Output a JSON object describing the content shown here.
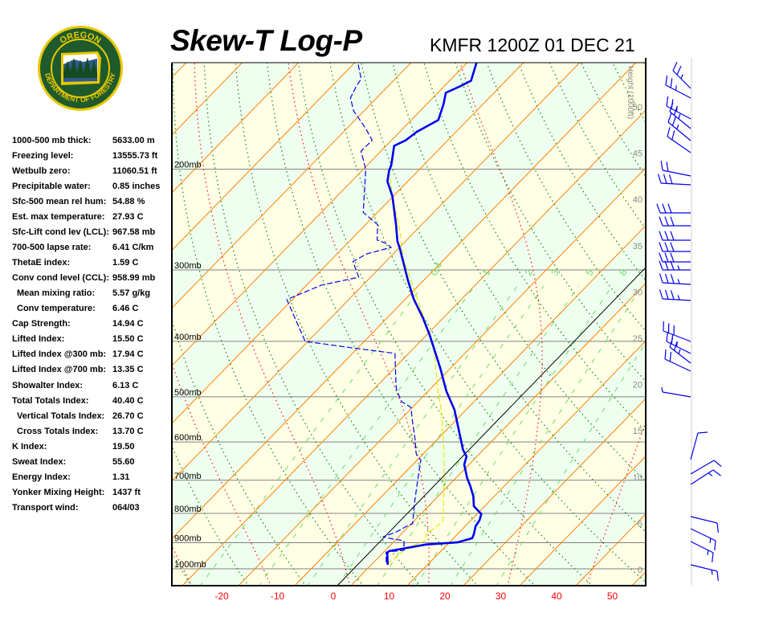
{
  "header": {
    "title": "Skew-T Log-P",
    "station_time": "KMFR 1200Z 01 DEC 21"
  },
  "logo": {
    "top_text": "OREGON",
    "bottom_text": "DEPARTMENT OF FORESTRY",
    "colors": {
      "ring": "#e8c800",
      "field": "#1f5a2c"
    }
  },
  "stats": [
    {
      "label": "1000-500 mb thick:",
      "value": "5633.00 m"
    },
    {
      "label": "Freezing level:",
      "value": "13555.73 ft"
    },
    {
      "label": "Wetbulb zero:",
      "value": "11060.51 ft"
    },
    {
      "label": "Precipitable water:",
      "value": "0.85 inches"
    },
    {
      "label": "Sfc-500 mean rel hum:",
      "value": "54.88 %"
    },
    {
      "label": "Est. max temperature:",
      "value": "27.93 C"
    },
    {
      "label": "Sfc-Lift cond lev (LCL):",
      "value": "967.58 mb"
    },
    {
      "label": "700-500 lapse rate:",
      "value": "6.41 C/km"
    },
    {
      "label": "ThetaE index:",
      "value": "1.59 C"
    },
    {
      "label": "Conv cond level (CCL):",
      "value": "958.99 mb"
    },
    {
      "label": "Mean mixing ratio:",
      "value": "5.57 g/kg",
      "indent": true
    },
    {
      "label": "Conv temperature:",
      "value": "6.46 C",
      "indent": true
    },
    {
      "label": "Cap Strength:",
      "value": "14.94 C"
    },
    {
      "label": "Lifted Index:",
      "value": "15.50 C"
    },
    {
      "label": "Lifted Index @300 mb:",
      "value": "17.94 C"
    },
    {
      "label": "Lifted Index @700 mb:",
      "value": "13.35 C"
    },
    {
      "label": "Showalter Index:",
      "value": "6.13 C"
    },
    {
      "label": "Total Totals Index:",
      "value": "40.40 C"
    },
    {
      "label": "Vertical Totals Index:",
      "value": "26.70 C",
      "indent": true
    },
    {
      "label": "Cross Totals Index:",
      "value": "13.70 C",
      "indent": true
    },
    {
      "label": "K Index:",
      "value": "19.50"
    },
    {
      "label": "Sweat Index:",
      "value": "55.60"
    },
    {
      "label": "Energy Index:",
      "value": "1.31"
    },
    {
      "label": "Yonker Mixing Height:",
      "value": "1437 ft"
    },
    {
      "label": "Transport wind:",
      "value": "064/03"
    }
  ],
  "chart_data": {
    "type": "line",
    "title": "Skew-T Log-P",
    "x_ticks": [
      "-20",
      "-10",
      "0",
      "10",
      "20",
      "30",
      "40",
      "50"
    ],
    "x_tick_values": [
      -20,
      -10,
      0,
      10,
      20,
      30,
      40,
      50
    ],
    "pressure_levels": [
      200,
      300,
      400,
      500,
      600,
      700,
      800,
      900,
      1000
    ],
    "pressure_labels": [
      "200mb",
      "300mb",
      "400mb",
      "500mb",
      "600mb",
      "700mb",
      "800mb",
      "900mb",
      "1000mb"
    ],
    "y_scale": "log-pressure",
    "height_axis_label": "Height (1000ft)",
    "height_ticks": [
      "0",
      "5",
      "10",
      "15",
      "20",
      "25",
      "30",
      "35",
      "40",
      "45",
      "50"
    ],
    "mixing_ratio_labels": [
      "0.4",
      "1",
      "2",
      "3",
      "5",
      "8"
    ],
    "colors": {
      "temperature": "#0000ee",
      "dewpoint": "#0000ee",
      "parcel": "#e8e800",
      "isotherm": "#ff8000",
      "dry_adiabat": "#008000",
      "moist_adiabat": "#ff0000",
      "mixing_ratio": "#66dd66",
      "band_a": "#efffef",
      "band_b": "#ffffe6",
      "x_tick": "#ff0000",
      "height_tick": "#888888"
    },
    "series": [
      {
        "key": "temperature",
        "points_p_T": [
          [
            984,
            6.1
          ],
          [
            937,
            3.9
          ],
          [
            931,
            4.0
          ],
          [
            907,
            9.4
          ],
          [
            899,
            14.7
          ],
          [
            884,
            16.6
          ],
          [
            870,
            16.2
          ],
          [
            842,
            15.1
          ],
          [
            823,
            14.8
          ],
          [
            802,
            14.0
          ],
          [
            777,
            11.3
          ],
          [
            747,
            9.5
          ],
          [
            717,
            7.2
          ],
          [
            694,
            5.2
          ],
          [
            657,
            2.3
          ],
          [
            636,
            1.3
          ],
          [
            619,
            -0.5
          ],
          [
            527,
            -9.0
          ],
          [
            489,
            -13.7
          ],
          [
            445,
            -18.9
          ],
          [
            390,
            -26.5
          ],
          [
            364,
            -30.7
          ],
          [
            337,
            -35.7
          ],
          [
            312,
            -40.1
          ],
          [
            276,
            -46.8
          ],
          [
            267,
            -48.7
          ],
          [
            250,
            -51.8
          ],
          [
            223,
            -57.4
          ],
          [
            210,
            -60.9
          ],
          [
            201,
            -62.5
          ],
          [
            197,
            -63.0
          ],
          [
            182,
            -65.9
          ],
          [
            178,
            -64.8
          ],
          [
            172,
            -64.3
          ],
          [
            164,
            -62.5
          ],
          [
            154,
            -64.3
          ],
          [
            147,
            -65.9
          ],
          [
            143,
            -64.4
          ],
          [
            140,
            -63.5
          ],
          [
            130,
            -65.7
          ]
        ]
      },
      {
        "key": "dewpoint",
        "points_p_T": [
          [
            974,
            5.4
          ],
          [
            935,
            3.6
          ],
          [
            928,
            6.5
          ],
          [
            893,
            4.8
          ],
          [
            887,
            2.5
          ],
          [
            879,
            0.4
          ],
          [
            864,
            1.8
          ],
          [
            842,
            2.8
          ],
          [
            834,
            3.4
          ],
          [
            769,
            0.2
          ],
          [
            698,
            -3.4
          ],
          [
            646,
            -6.2
          ],
          [
            629,
            -8.2
          ],
          [
            596,
            -10.7
          ],
          [
            549,
            -14.8
          ],
          [
            522,
            -17.2
          ],
          [
            510,
            -19.9
          ],
          [
            486,
            -22.9
          ],
          [
            475,
            -24.0
          ],
          [
            420,
            -29.5
          ],
          [
            411,
            -37.9
          ],
          [
            400,
            -47.7
          ],
          [
            338,
            -58.3
          ],
          [
            319,
            -54.6
          ],
          [
            309,
            -49.3
          ],
          [
            290,
            -53.1
          ],
          [
            281,
            -51.9
          ],
          [
            274,
            -48.7
          ],
          [
            270,
            -50.1
          ],
          [
            266,
            -52.5
          ],
          [
            250,
            -55.1
          ],
          [
            238,
            -59.8
          ],
          [
            200,
            -66.9
          ],
          [
            186,
            -70.9
          ],
          [
            178,
            -70.8
          ],
          [
            170,
            -73.9
          ],
          [
            158,
            -79.3
          ],
          [
            150,
            -82.1
          ],
          [
            143,
            -83.1
          ],
          [
            139,
            -83.5
          ],
          [
            130,
            -87.0
          ]
        ]
      },
      {
        "key": "parcel",
        "points_p_T": [
          [
            981,
            5.9
          ],
          [
            919,
            6.6
          ],
          [
            893,
            8.7
          ],
          [
            870,
            7.6
          ],
          [
            837,
            8.3
          ],
          [
            821,
            8.2
          ],
          [
            721,
            2.7
          ],
          [
            636,
            -2.7
          ],
          [
            532,
            -10.9
          ],
          [
            486,
            -15.5
          ],
          [
            417,
            -22.8
          ],
          [
            366,
            -30.2
          ],
          [
            286,
            -44.7
          ],
          [
            254,
            -50.5
          ],
          [
            223,
            -57.4
          ],
          [
            201,
            -62.5
          ]
        ]
      }
    ]
  }
}
